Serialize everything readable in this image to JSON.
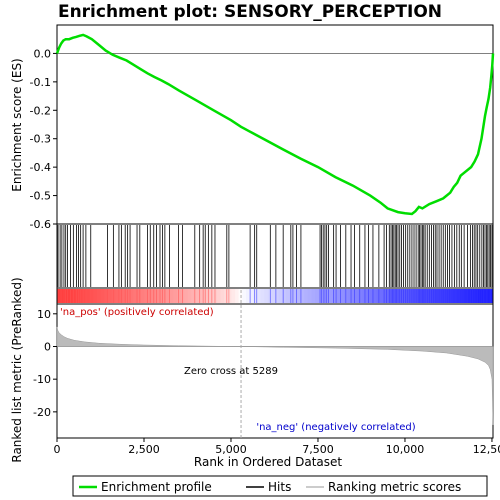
{
  "chart_data": {
    "type": "line",
    "title": "Enrichment plot: SENSORY_PERCEPTION",
    "top_panel": {
      "ylabel": "Enrichment score (ES)",
      "ylim": [
        -0.6,
        0.1
      ],
      "yticks": [
        0.0,
        -0.1,
        -0.2,
        -0.3,
        -0.4,
        -0.5,
        -0.6
      ],
      "ytick_labels": [
        "0.0",
        "-0.1",
        "-0.2",
        "-0.3",
        "-0.4",
        "-0.5",
        "-0.6"
      ],
      "series": [
        {
          "name": "Enrichment profile",
          "color": "#00dd00",
          "x": [
            0,
            60,
            120,
            180,
            250,
            350,
            450,
            550,
            650,
            750,
            850,
            1000,
            1200,
            1400,
            1600,
            1800,
            2000,
            2200,
            2400,
            2600,
            2800,
            3000,
            3200,
            3500,
            4000,
            4500,
            5000,
            5289,
            5500,
            6000,
            6500,
            7000,
            7500,
            8000,
            8500,
            9000,
            9300,
            9500,
            9800,
            10000,
            10200,
            10300,
            10400,
            10500,
            10700,
            10900,
            11100,
            11300,
            11400,
            11500,
            11600,
            11700,
            11900,
            12000,
            12100,
            12200,
            12300,
            12350,
            12400,
            12450,
            12480,
            12510,
            12530
          ],
          "y": [
            0.0,
            0.02,
            0.035,
            0.045,
            0.05,
            0.05,
            0.055,
            0.058,
            0.062,
            0.065,
            0.06,
            0.05,
            0.03,
            0.01,
            -0.005,
            -0.015,
            -0.025,
            -0.04,
            -0.055,
            -0.07,
            -0.083,
            -0.095,
            -0.108,
            -0.13,
            -0.165,
            -0.2,
            -0.235,
            -0.258,
            -0.272,
            -0.305,
            -0.338,
            -0.37,
            -0.4,
            -0.435,
            -0.465,
            -0.5,
            -0.525,
            -0.545,
            -0.558,
            -0.562,
            -0.565,
            -0.555,
            -0.54,
            -0.545,
            -0.53,
            -0.52,
            -0.51,
            -0.49,
            -0.47,
            -0.455,
            -0.43,
            -0.42,
            -0.4,
            -0.38,
            -0.355,
            -0.3,
            -0.22,
            -0.19,
            -0.16,
            -0.12,
            -0.08,
            -0.04,
            0.0
          ]
        }
      ]
    },
    "bottom_panel": {
      "ylabel": "Ranked list metric (PreRanked)",
      "xlabel": "Rank in Ordered Dataset",
      "ylim": [
        -28,
        13
      ],
      "yticks": [
        10,
        0,
        -10,
        -20
      ],
      "ytick_labels": [
        "10",
        "0",
        "-10",
        "-20"
      ],
      "annotations": {
        "pos_label": "'na_pos' (positively correlated)",
        "neg_label": "'na_neg' (negatively correlated)",
        "zero_cross": "Zero cross at 5289"
      },
      "zero_cross_x": 5289,
      "metric_profile": {
        "x": [
          0,
          20,
          60,
          120,
          200,
          300,
          500,
          800,
          1200,
          1800,
          2500,
          3500,
          4500,
          5289,
          6500,
          8000,
          9500,
          10500,
          11200,
          11800,
          12100,
          12300,
          12400,
          12450,
          12500,
          12530
        ],
        "y": [
          6.0,
          5.0,
          4.2,
          3.6,
          3.0,
          2.5,
          1.9,
          1.4,
          1.0,
          0.7,
          0.45,
          0.25,
          0.1,
          0.0,
          -0.25,
          -0.5,
          -0.9,
          -1.4,
          -2.0,
          -3.0,
          -3.8,
          -4.8,
          -5.8,
          -7.0,
          -10.0,
          -24.0
        ]
      }
    },
    "xlim": [
      0,
      12530
    ],
    "xticks": [
      0,
      2500,
      5000,
      7500,
      10000,
      12500
    ],
    "xtick_labels": [
      "0",
      "2,500",
      "5,000",
      "7,500",
      "10,000",
      "12,500"
    ],
    "hits": [
      30,
      90,
      140,
      200,
      250,
      300,
      390,
      470,
      560,
      620,
      680,
      750,
      830,
      970,
      1450,
      1620,
      1780,
      1850,
      1960,
      2030,
      2100,
      2300,
      2380,
      2600,
      2680,
      2780,
      2860,
      2960,
      3030,
      3100,
      3230,
      3490,
      3610,
      3960,
      4100,
      4200,
      4260,
      4350,
      4450,
      4540,
      4880,
      4940,
      5550,
      5680,
      5740,
      6130,
      6290,
      6500,
      6720,
      6780,
      6880,
      7010,
      7560,
      7600,
      7650,
      7700,
      7750,
      7800,
      7950,
      8020,
      8150,
      8300,
      8450,
      8550,
      8700,
      8850,
      8950,
      9080,
      9250,
      9400,
      9470,
      9550,
      9600,
      9640,
      9680,
      9720,
      9760,
      9800,
      9850,
      9900,
      9960,
      10020,
      10080,
      10140,
      10200,
      10260,
      10320,
      10380,
      10420,
      10460,
      10500,
      10540,
      10580,
      10640,
      10700,
      10760,
      10820,
      10870,
      10920,
      10980,
      11040,
      11100,
      11160,
      11220,
      11280,
      11350,
      11420,
      11490,
      11560,
      11620,
      11700,
      11800,
      11880,
      11940,
      11990,
      12040,
      12090,
      12150,
      12210,
      12260,
      12300,
      12340,
      12380,
      12420,
      12460,
      12500
    ],
    "legend": [
      "Enrichment profile",
      "Hits",
      "Ranking metric scores"
    ],
    "colors": {
      "profile": "#00dd00",
      "hits": "#000000",
      "metric_fill": "#bbbbbb",
      "pos_band": "#ff0000",
      "neg_band": "#0000ff",
      "zero_cross_line": "#aaaaaa"
    }
  }
}
